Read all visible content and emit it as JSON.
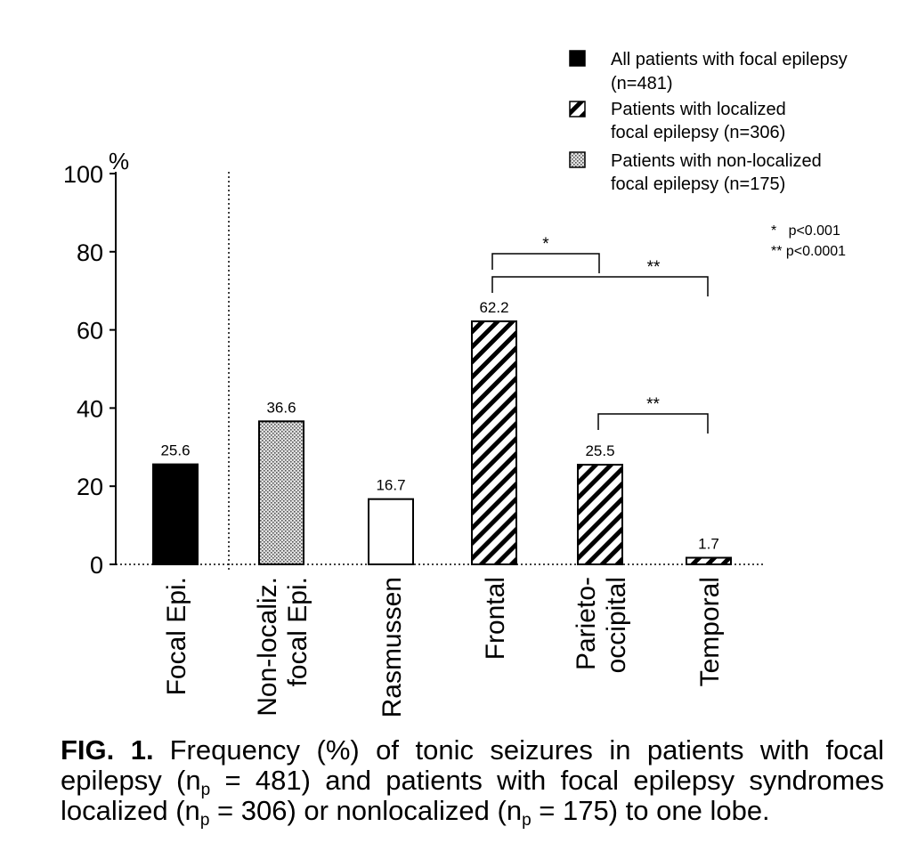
{
  "chart_data": {
    "type": "bar",
    "ylabel": "%",
    "ylim": [
      0,
      100
    ],
    "yticks": [
      "0",
      "20",
      "40",
      "60",
      "80",
      "100"
    ],
    "categories": [
      "Focal Epi.",
      "Non-localiz.\nfocal Epi.",
      "Rasmussen",
      "Frontal",
      "Parieto-\noccipital",
      "Temporal"
    ],
    "values": [
      25.6,
      36.6,
      16.7,
      62.2,
      25.5,
      1.7
    ],
    "value_labels": [
      "25.6",
      "36.6",
      "16.7",
      "62.2",
      "25.5",
      "1.7"
    ],
    "fills": [
      "solid",
      "dotted",
      "empty",
      "hatched",
      "hatched",
      "hatched"
    ],
    "legend": [
      {
        "label": "All patients with focal epilepsy\n(n=481)",
        "fill": "solid"
      },
      {
        "label": "Patients with localized\nfocal epilepsy (n=306)",
        "fill": "hatched"
      },
      {
        "label": "Patients with non-localized\nfocal epilepsy (n=175)",
        "fill": "dotted"
      }
    ],
    "legend_position": "top-right",
    "significance_legend": [
      "*   p<0.001",
      "** p<0.0001"
    ],
    "comparisons": [
      {
        "from": "Frontal",
        "to": "Parieto-\noccipital",
        "label": "*"
      },
      {
        "from": "Frontal",
        "to": "Temporal",
        "label": "**"
      },
      {
        "from": "Parieto-\noccipital",
        "to": "Temporal",
        "label": "**"
      }
    ],
    "divider_after": "Focal Epi."
  },
  "caption": {
    "label": "FIG. 1.",
    "text_1": "Frequency (%) of tonic seizures in patients with focal epilepsy (n",
    "sub_1": "p",
    "text_2": " = 481) and patients with focal epilepsy syndromes localized (n",
    "sub_2": "p",
    "text_3": " = 306) or nonlocalized (n",
    "sub_3": "p",
    "text_4": " = 175) to one lobe."
  },
  "colors": {
    "ink": "#000000",
    "background": "#ffffff",
    "dotted_fill": "#d4d4d4"
  }
}
